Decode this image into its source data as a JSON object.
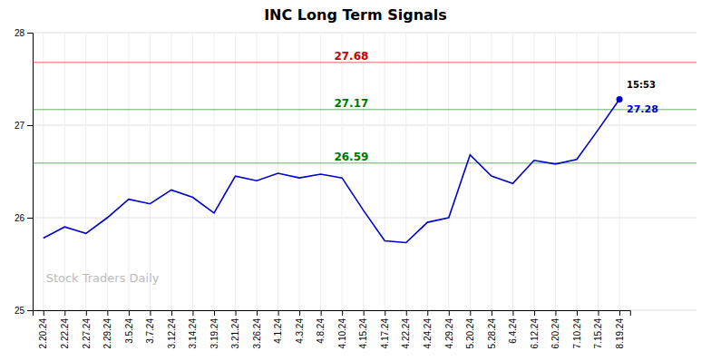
{
  "chart_data": {
    "type": "line",
    "title": "INC Long Term Signals",
    "categories": [
      "2.20.24",
      "2.22.24",
      "2.27.24",
      "2.29.24",
      "3.5.24",
      "3.7.24",
      "3.12.24",
      "3.14.24",
      "3.19.24",
      "3.21.24",
      "3.26.24",
      "4.1.24",
      "4.3.24",
      "4.8.24",
      "4.10.24",
      "4.15.24",
      "4.17.24",
      "4.22.24",
      "4.24.24",
      "4.29.24",
      "5.20.24",
      "5.28.24",
      "6.4.24",
      "6.12.24",
      "6.20.24",
      "7.10.24",
      "7.15.24",
      "8.19.24"
    ],
    "values": [
      25.78,
      25.9,
      25.83,
      26.0,
      26.2,
      26.15,
      26.3,
      26.22,
      26.05,
      26.45,
      26.4,
      26.48,
      26.43,
      26.47,
      26.43,
      26.08,
      25.75,
      25.73,
      25.95,
      26.0,
      26.68,
      26.45,
      26.37,
      26.62,
      26.58,
      26.63,
      26.95,
      27.28
    ],
    "color": "#0000cc",
    "ylim": [
      25,
      28
    ],
    "yticks": [
      25,
      26,
      27,
      28
    ],
    "grid": true,
    "hlines": [
      {
        "value": 27.68,
        "label": "27.68",
        "color": "#cc0000"
      },
      {
        "value": 27.17,
        "label": "27.17",
        "color": "#007700"
      },
      {
        "value": 26.59,
        "label": "26.59",
        "color": "#007700"
      }
    ],
    "annotations": [
      {
        "text": "15:53",
        "x": "8.19.24",
        "y": 27.28,
        "position": "above"
      },
      {
        "text": "27.28",
        "x": "8.19.24",
        "y": 27.28,
        "position": "below",
        "marker": "circle"
      },
      {
        "text": "Stock Traders Daily",
        "position": "lower left"
      }
    ]
  }
}
